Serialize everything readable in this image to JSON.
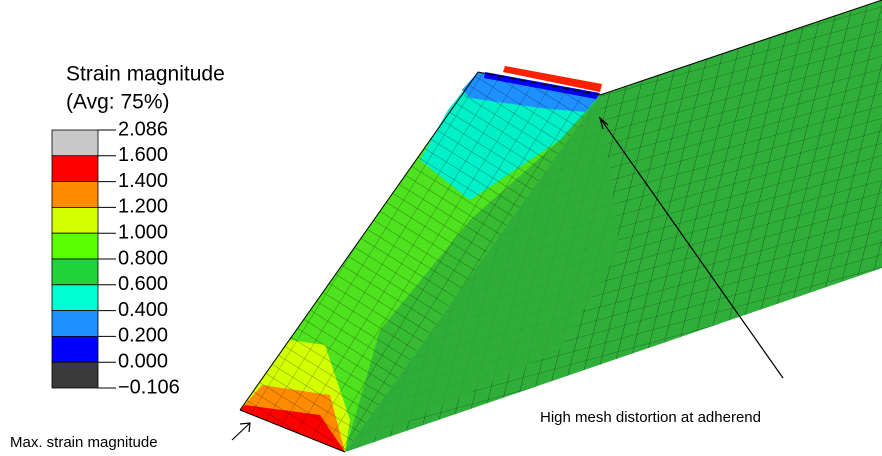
{
  "legend": {
    "title": "Strain magnitude",
    "subtitle": "(Avg: 75%)",
    "ticks": [
      "2.086",
      "1.600",
      "1.400",
      "1.200",
      "1.000",
      "0.800",
      "0.600",
      "0.400",
      "0.200",
      "0.000",
      "−0.106"
    ],
    "colors": [
      "#c8c8c8",
      "#ff0000",
      "#ff8c00",
      "#d4ff00",
      "#5bff00",
      "#22d43a",
      "#00ffd0",
      "#1e90ff",
      "#0000ff",
      "#3a3a3a"
    ]
  },
  "annotations": {
    "distortion": "High mesh distortion at adherend",
    "max_strain": "Max. strain magnitude"
  }
}
